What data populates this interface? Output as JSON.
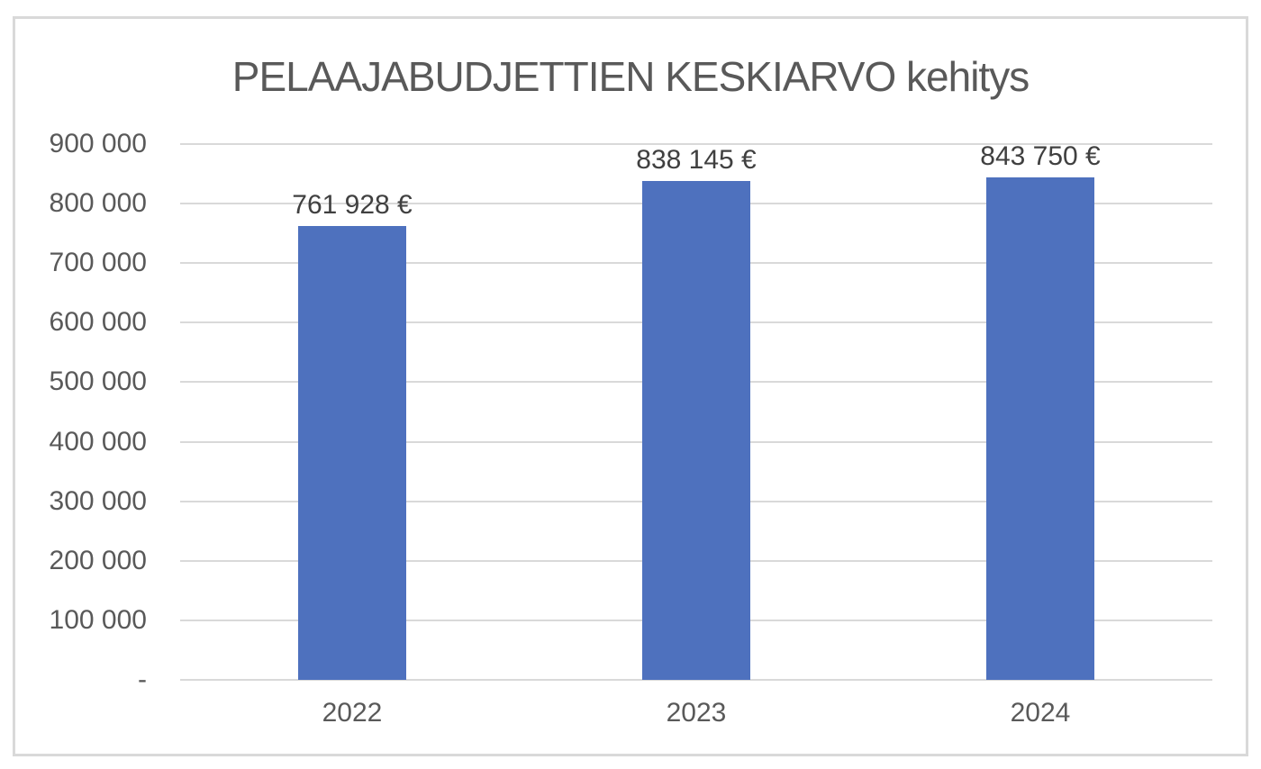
{
  "chart_data": {
    "type": "bar",
    "title": "PELAAJABUDJETTIEN KESKIARVO kehitys",
    "categories": [
      "2022",
      "2023",
      "2024"
    ],
    "values": [
      761928,
      838145,
      843750
    ],
    "data_labels": [
      "761 928 €",
      "838 145 €",
      "843 750 €"
    ],
    "ylim": [
      0,
      900000
    ],
    "ytick_interval": 100000,
    "ytick_labels": [
      "-",
      "100 000",
      "200 000",
      "300 000",
      "400 000",
      "500 000",
      "600 000",
      "700 000",
      "800 000",
      "900 000"
    ],
    "xlabel": "",
    "ylabel": "",
    "grid": true,
    "legend": "none",
    "colors": {
      "bar": "#4E71BE",
      "gridline": "#D9D9D9",
      "axis_text": "#595959",
      "title_text": "#595959",
      "data_label_text": "#404040",
      "border": "#D9D9D9"
    }
  }
}
